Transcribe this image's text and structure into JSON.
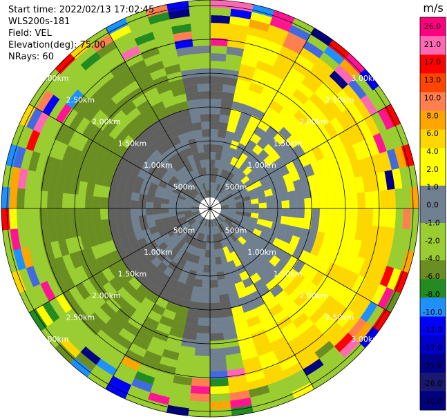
{
  "header": {
    "start_time": "Start time: 2022/02/13 17:02:45",
    "instrument": "WLS200s-181",
    "field": "Field: VEL",
    "elevation": "Elevation(deg): 75.00",
    "nrays": "NRays: 60"
  },
  "colorbar": {
    "unit": "m/s",
    "ticks": [
      "26.0",
      "21.0",
      "17.0",
      "13.0",
      "10.0",
      "8.0",
      "6.0",
      "4.0",
      "2.0",
      "1.0",
      "0.0",
      "-1.0",
      "-2.0",
      "-4.0",
      "-6.0",
      "-8.0",
      "-10.0",
      "-13.0",
      "-17.0",
      "-21.0",
      "-26.0",
      "-30.0"
    ],
    "colors": [
      "#ff007f",
      "#ff69b4",
      "#ff0000",
      "#ff4500",
      "#ff7f50",
      "#ffa500",
      "#ffd700",
      "#ffff00",
      "#ffff00",
      "#708090",
      "#708090",
      "#9acd32",
      "#9acd32",
      "#6b8e23",
      "#228b22",
      "#1e90ff",
      "#0000ff",
      "#0000cd",
      "#00008b",
      "#191970",
      "#000080"
    ]
  },
  "chart_data": {
    "type": "ppi",
    "range_ring_labels": [
      "500m",
      "1.00km",
      "1.50km",
      "2.00km",
      "2.50km",
      "3.00km"
    ],
    "range_rings_km": [
      0.5,
      1.0,
      1.5,
      2.0,
      2.5,
      3.0
    ],
    "max_range_km": 3.55,
    "n_rays": 60,
    "field": "VEL"
  }
}
